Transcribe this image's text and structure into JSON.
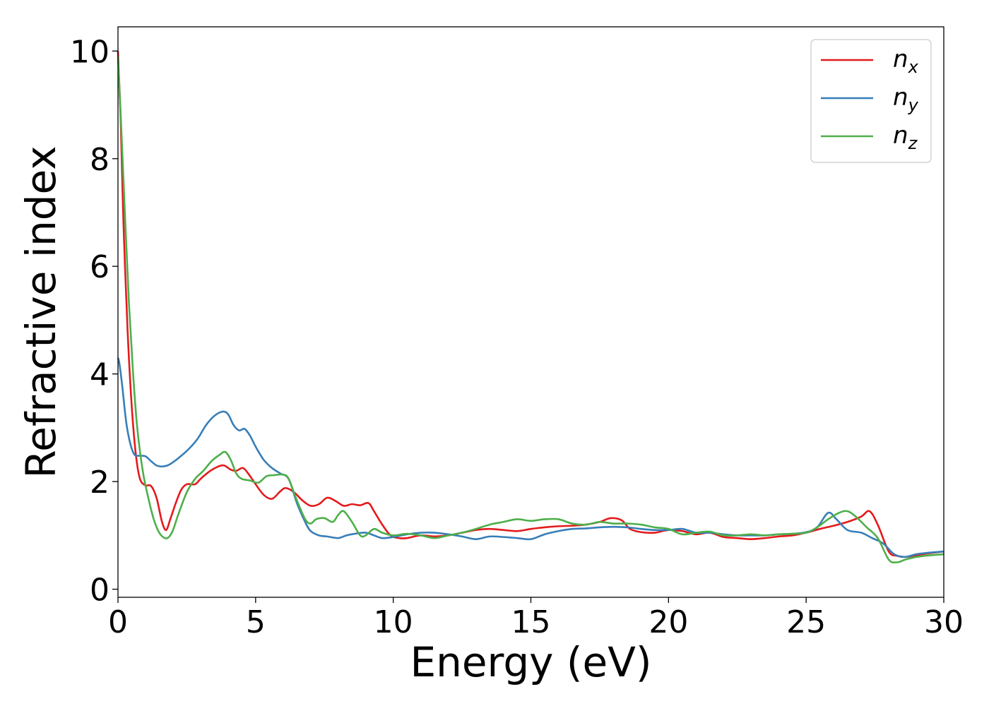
{
  "chart_data": {
    "type": "line",
    "title": "",
    "xlabel": "Energy (eV)",
    "ylabel": "Refractive index",
    "xlim": [
      0,
      30
    ],
    "ylim": [
      -0.15,
      10.45
    ],
    "xticks": [
      0,
      5,
      10,
      15,
      20,
      25,
      30
    ],
    "yticks": [
      0,
      2,
      4,
      6,
      8,
      10
    ],
    "xtick_labels": [
      "0",
      "5",
      "10",
      "15",
      "20",
      "25",
      "30"
    ],
    "ytick_labels": [
      "0",
      "2",
      "4",
      "6",
      "8",
      "10"
    ],
    "grid": false,
    "legend_position": "top-right",
    "series": [
      {
        "name": "n",
        "subscript": "x",
        "color": "#e41a1c",
        "x": [
          0,
          0.1,
          0.2,
          0.35,
          0.5,
          0.65,
          0.8,
          1.0,
          1.2,
          1.4,
          1.6,
          1.75,
          1.9,
          2.1,
          2.3,
          2.5,
          2.8,
          3.0,
          3.3,
          3.6,
          3.85,
          4.1,
          4.3,
          4.55,
          4.8,
          5.0,
          5.3,
          5.6,
          5.9,
          6.1,
          6.4,
          6.7,
          7.0,
          7.3,
          7.6,
          7.9,
          8.2,
          8.5,
          8.8,
          9.1,
          9.3,
          9.6,
          9.9,
          10.2,
          10.5,
          11.0,
          11.5,
          12.0,
          12.5,
          13.0,
          13.5,
          14.0,
          14.5,
          15.0,
          15.5,
          16.0,
          16.5,
          17.0,
          17.5,
          17.9,
          18.3,
          18.6,
          19.0,
          19.5,
          20.0,
          20.5,
          21.0,
          21.5,
          22.0,
          22.5,
          23.0,
          23.5,
          24.0,
          24.5,
          25.0,
          25.5,
          26.0,
          26.5,
          27.0,
          27.3,
          27.6,
          28.0,
          28.3,
          28.6,
          29.0,
          29.5,
          30.0
        ],
        "y": [
          10.0,
          8.7,
          6.8,
          4.8,
          3.4,
          2.5,
          2.05,
          1.93,
          1.92,
          1.7,
          1.25,
          1.1,
          1.3,
          1.6,
          1.85,
          1.95,
          1.95,
          2.05,
          2.18,
          2.27,
          2.3,
          2.22,
          2.2,
          2.25,
          2.1,
          1.95,
          1.75,
          1.68,
          1.82,
          1.88,
          1.8,
          1.65,
          1.55,
          1.58,
          1.7,
          1.64,
          1.55,
          1.58,
          1.56,
          1.6,
          1.45,
          1.2,
          1.0,
          0.95,
          0.95,
          1.0,
          0.98,
          1.0,
          1.05,
          1.1,
          1.12,
          1.1,
          1.08,
          1.12,
          1.15,
          1.17,
          1.18,
          1.2,
          1.25,
          1.32,
          1.28,
          1.12,
          1.06,
          1.05,
          1.1,
          1.08,
          1.02,
          1.05,
          0.97,
          0.95,
          0.93,
          0.95,
          0.98,
          1.0,
          1.05,
          1.12,
          1.18,
          1.25,
          1.35,
          1.45,
          1.2,
          0.7,
          0.62,
          0.6,
          0.63,
          0.67,
          0.7
        ]
      },
      {
        "name": "n",
        "subscript": "y",
        "color": "#377eb8",
        "x": [
          0,
          0.05,
          0.15,
          0.3,
          0.45,
          0.6,
          0.8,
          1.0,
          1.2,
          1.4,
          1.6,
          1.8,
          2.0,
          2.3,
          2.6,
          2.9,
          3.2,
          3.5,
          3.8,
          4.0,
          4.2,
          4.4,
          4.6,
          4.8,
          5.0,
          5.3,
          5.6,
          5.9,
          6.2,
          6.5,
          6.8,
          7.0,
          7.3,
          7.6,
          8.0,
          8.3,
          8.6,
          9.0,
          9.3,
          9.6,
          10.0,
          10.5,
          11.0,
          11.5,
          12.0,
          12.5,
          13.0,
          13.5,
          14.0,
          14.5,
          15.0,
          15.5,
          16.0,
          16.5,
          17.0,
          17.5,
          18.0,
          18.5,
          19.0,
          19.5,
          20.0,
          20.5,
          21.0,
          21.5,
          22.0,
          22.5,
          23.0,
          23.5,
          24.0,
          24.5,
          25.0,
          25.4,
          25.8,
          26.1,
          26.5,
          27.0,
          27.4,
          27.8,
          28.2,
          28.6,
          29.0,
          29.5,
          30.0
        ],
        "y": [
          4.3,
          4.2,
          3.8,
          3.1,
          2.7,
          2.5,
          2.48,
          2.47,
          2.38,
          2.3,
          2.28,
          2.3,
          2.36,
          2.48,
          2.62,
          2.8,
          3.05,
          3.22,
          3.3,
          3.25,
          3.05,
          2.95,
          2.98,
          2.85,
          2.65,
          2.4,
          2.25,
          2.15,
          2.05,
          1.6,
          1.25,
          1.08,
          1.0,
          0.98,
          0.95,
          1.0,
          1.03,
          1.05,
          1.0,
          0.95,
          0.97,
          1.02,
          1.05,
          1.05,
          1.02,
          0.98,
          0.93,
          0.98,
          0.97,
          0.95,
          0.93,
          1.02,
          1.08,
          1.12,
          1.13,
          1.15,
          1.16,
          1.15,
          1.12,
          1.1,
          1.1,
          1.12,
          1.05,
          1.05,
          1.02,
          1.0,
          1.0,
          1.0,
          1.02,
          1.03,
          1.06,
          1.15,
          1.42,
          1.3,
          1.1,
          1.05,
          0.95,
          0.85,
          0.65,
          0.6,
          0.65,
          0.68,
          0.7
        ]
      },
      {
        "name": "n",
        "subscript": "z",
        "color": "#4daf4a",
        "x": [
          0,
          0.1,
          0.25,
          0.4,
          0.55,
          0.7,
          0.9,
          1.1,
          1.3,
          1.5,
          1.7,
          1.85,
          2.0,
          2.2,
          2.5,
          2.8,
          3.1,
          3.4,
          3.7,
          3.9,
          4.1,
          4.3,
          4.5,
          4.8,
          5.1,
          5.4,
          5.7,
          6.0,
          6.2,
          6.5,
          6.8,
          7.0,
          7.2,
          7.5,
          7.8,
          8.0,
          8.2,
          8.5,
          8.8,
          9.0,
          9.3,
          9.6,
          10.0,
          10.5,
          11.0,
          11.5,
          12.0,
          12.5,
          13.0,
          13.5,
          14.0,
          14.5,
          15.0,
          15.5,
          16.0,
          16.5,
          17.0,
          17.5,
          18.0,
          18.5,
          19.0,
          19.5,
          20.0,
          20.5,
          21.0,
          21.5,
          22.0,
          22.5,
          23.0,
          23.5,
          24.0,
          24.5,
          25.0,
          25.4,
          25.8,
          26.2,
          26.5,
          26.8,
          27.2,
          27.6,
          28.0,
          28.3,
          28.6,
          29.0,
          29.5,
          30.0
        ],
        "y": [
          9.9,
          8.8,
          7.0,
          5.3,
          4.0,
          3.0,
          2.2,
          1.7,
          1.3,
          1.05,
          0.95,
          0.97,
          1.1,
          1.4,
          1.8,
          2.05,
          2.2,
          2.38,
          2.5,
          2.55,
          2.4,
          2.15,
          2.05,
          2.02,
          1.98,
          2.1,
          2.12,
          2.13,
          2.05,
          1.65,
          1.3,
          1.22,
          1.3,
          1.32,
          1.25,
          1.38,
          1.45,
          1.25,
          1.0,
          1.0,
          1.12,
          1.05,
          1.0,
          1.03,
          1.0,
          0.95,
          1.0,
          1.05,
          1.12,
          1.2,
          1.25,
          1.3,
          1.27,
          1.3,
          1.3,
          1.22,
          1.2,
          1.25,
          1.22,
          1.22,
          1.2,
          1.15,
          1.12,
          1.02,
          1.05,
          1.07,
          1.0,
          1.0,
          1.02,
          1.0,
          1.02,
          1.03,
          1.05,
          1.15,
          1.3,
          1.42,
          1.45,
          1.35,
          1.15,
          0.95,
          0.55,
          0.5,
          0.55,
          0.6,
          0.63,
          0.65
        ]
      }
    ]
  }
}
